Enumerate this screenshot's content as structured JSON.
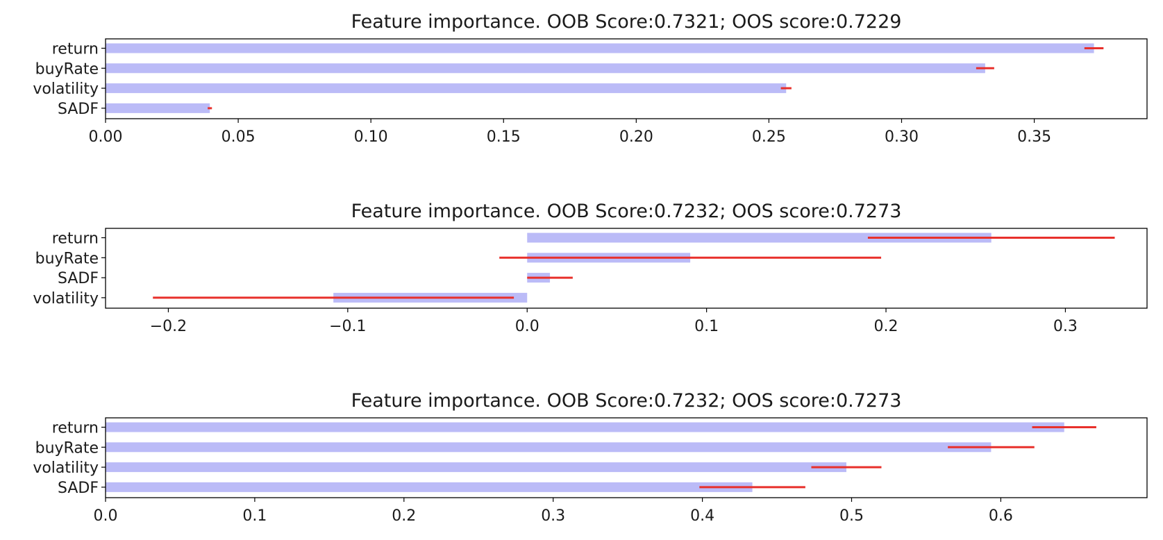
{
  "colors": {
    "bar": "#bbbbf7",
    "error": "#e8302b",
    "axis": "#000000"
  },
  "chart_data": [
    {
      "type": "bar",
      "orientation": "horizontal",
      "title": "Feature importance. OOB Score:0.7321; OOS score:0.7229",
      "categories": [
        "return",
        "buyRate",
        "volatility",
        "SADF"
      ],
      "values": [
        0.3725,
        0.3315,
        0.2565,
        0.0393
      ],
      "errors": [
        0.0036,
        0.0034,
        0.002,
        0.0008
      ],
      "xlim": [
        0,
        0.3925
      ],
      "xticks": [
        0.0,
        0.05,
        0.1,
        0.15,
        0.2,
        0.25,
        0.3,
        0.35
      ],
      "xtick_labels": [
        "0.00",
        "0.05",
        "0.10",
        "0.15",
        "0.20",
        "0.25",
        "0.30",
        "0.35"
      ]
    },
    {
      "type": "bar",
      "orientation": "horizontal",
      "title": "Feature importance. OOB Score:0.7232; OOS score:0.7273",
      "categories": [
        "return",
        "buyRate",
        "SADF",
        "volatility"
      ],
      "values": [
        0.2587,
        0.0909,
        0.0127,
        -0.108
      ],
      "errors": [
        0.0688,
        0.1064,
        0.0127,
        0.1006
      ],
      "xlim": [
        -0.235,
        0.3455
      ],
      "xticks": [
        -0.2,
        -0.1,
        0.0,
        0.1,
        0.2,
        0.3
      ],
      "xtick_labels": [
        "−0.2",
        "−0.1",
        "0.0",
        "0.1",
        "0.2",
        "0.3"
      ]
    },
    {
      "type": "bar",
      "orientation": "horizontal",
      "title": "Feature importance. OOB Score:0.7232; OOS score:0.7273",
      "categories": [
        "return",
        "buyRate",
        "volatility",
        "SADF"
      ],
      "values": [
        0.6425,
        0.5935,
        0.4965,
        0.4335
      ],
      "errors": [
        0.0215,
        0.029,
        0.0235,
        0.0355
      ],
      "xlim": [
        0,
        0.698
      ],
      "xticks": [
        0.0,
        0.1,
        0.2,
        0.3,
        0.4,
        0.5,
        0.6
      ],
      "xtick_labels": [
        "0.0",
        "0.1",
        "0.2",
        "0.3",
        "0.4",
        "0.5",
        "0.6"
      ]
    }
  ]
}
